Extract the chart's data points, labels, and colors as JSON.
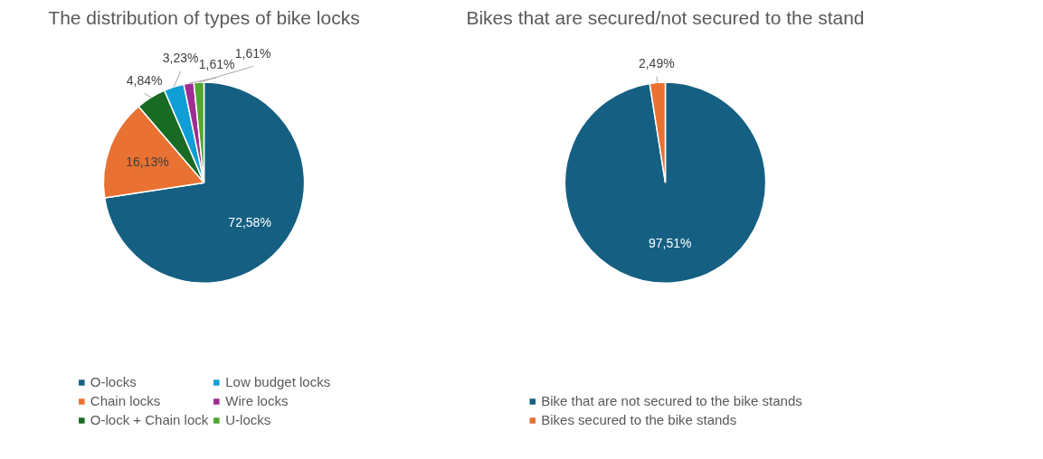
{
  "chart_data": [
    {
      "type": "pie",
      "title": "The distribution of types of bike locks",
      "categories": [
        "O-locks",
        "Chain locks",
        "O-lock + Chain lock",
        "Low budget locks",
        "Wire locks",
        "U-locks"
      ],
      "values": [
        72.58,
        16.13,
        4.84,
        3.23,
        1.61,
        1.61
      ],
      "value_labels": [
        "72,58%",
        "16,13%",
        "4,84%",
        "3,23%",
        "1,61%",
        "1,61%"
      ],
      "colors": [
        "#156082",
        "#e97132",
        "#196b24",
        "#0f9ed5",
        "#a02b93",
        "#4ea72e"
      ],
      "legend": "bottom"
    },
    {
      "type": "pie",
      "title": "Bikes that are secured/not secured to the stand",
      "categories": [
        "Bike that are not secured to the bike stands",
        "Bikes secured to the bike stands"
      ],
      "values": [
        97.51,
        2.49
      ],
      "value_labels": [
        "97,51%",
        "2,49%"
      ],
      "colors": [
        "#156082",
        "#e97132"
      ],
      "legend": "bottom"
    }
  ]
}
